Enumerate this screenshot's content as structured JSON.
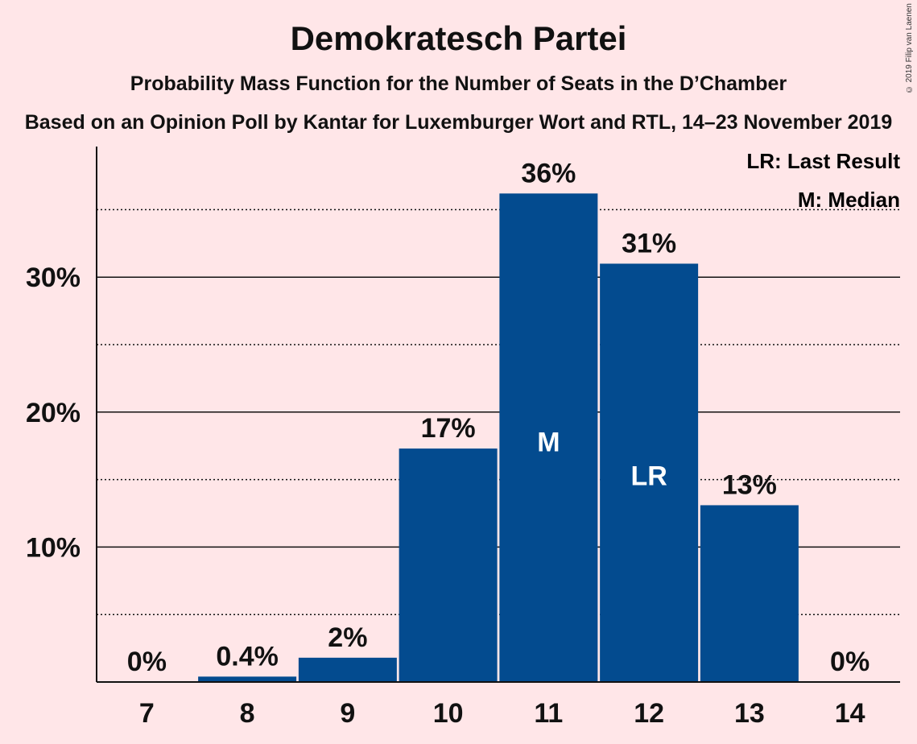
{
  "title": "Demokratesch Partei",
  "subtitle": "Probability Mass Function for the Number of Seats in the D’Chamber",
  "source": "Based on an Opinion Poll by Kantar for Luxemburger Wort and RTL, 14–23 November 2019",
  "copyright": "© 2019 Filip van Laenen",
  "legend": {
    "last_result": "LR: Last Result",
    "median": "M: Median"
  },
  "colors": {
    "background": "#FFE6E8",
    "bar": "#034B8F",
    "text": "#111111"
  },
  "chart_data": {
    "type": "bar",
    "categories": [
      "7",
      "8",
      "9",
      "10",
      "11",
      "12",
      "13",
      "14"
    ],
    "values": [
      0,
      0.4,
      1.8,
      17.3,
      36.2,
      31.0,
      13.1,
      0
    ],
    "data_labels": [
      "0%",
      "0.4%",
      "2%",
      "17%",
      "36%",
      "31%",
      "13%",
      "0%"
    ],
    "bar_markers": {
      "11": "M",
      "12": "LR"
    },
    "ylim": [
      0,
      39.5
    ],
    "yticks": [
      10,
      20,
      30
    ],
    "ytick_labels": [
      "10%",
      "20%",
      "30%"
    ],
    "minor_gridlines": [
      5,
      15,
      25,
      35
    ],
    "grid": true,
    "legend_position": "top-right"
  }
}
